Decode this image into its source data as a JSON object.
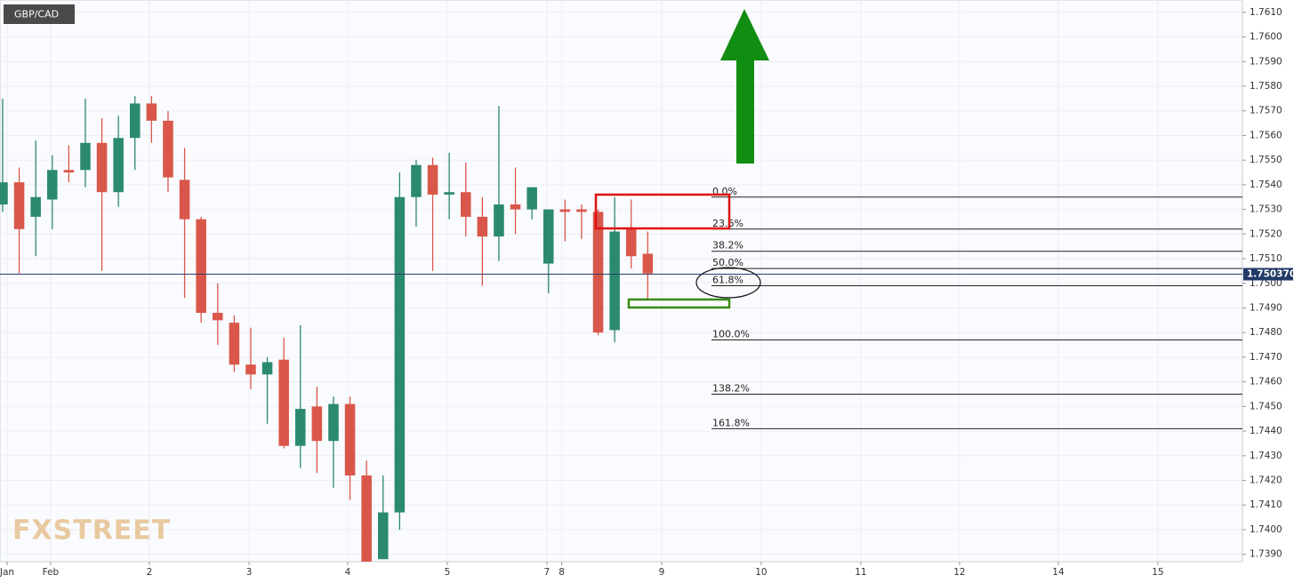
{
  "chart_data": {
    "type": "candlestick",
    "title": "GBP/CAD",
    "watermark": "FXSTREET",
    "up_color": "#2b8a6e",
    "down_color": "#d9574a",
    "grid": true,
    "x": [
      0,
      1,
      2,
      3,
      4,
      5,
      6,
      7,
      8,
      9,
      10,
      11,
      12,
      13,
      14,
      15,
      16,
      17,
      18,
      19,
      20,
      21,
      22,
      23,
      24,
      25,
      26,
      27,
      28,
      29,
      30,
      31,
      32,
      33,
      34,
      35,
      36,
      37,
      38,
      39
    ],
    "open": [
      1.7532,
      1.7541,
      1.7527,
      1.7534,
      1.7546,
      1.7546,
      1.7557,
      1.7537,
      1.7559,
      1.7573,
      1.7566,
      1.7542,
      1.7526,
      1.7488,
      1.7484,
      1.7467,
      1.7463,
      1.7469,
      1.7434,
      1.745,
      1.7436,
      1.7451,
      1.7422,
      1.7388,
      1.7407,
      1.7535,
      1.7548,
      1.7536,
      1.7537,
      1.7527,
      1.7519,
      1.7532,
      1.753,
      1.7508,
      1.753,
      1.753,
      1.7529,
      1.7481,
      1.7522,
      1.7512
    ],
    "high": [
      1.7575,
      1.7547,
      1.7558,
      1.7552,
      1.7556,
      1.7575,
      1.7567,
      1.7568,
      1.7576,
      1.7576,
      1.757,
      1.7555,
      1.7527,
      1.75,
      1.7487,
      1.7482,
      1.747,
      1.7478,
      1.7483,
      1.7458,
      1.7454,
      1.7454,
      1.7428,
      1.7422,
      1.7545,
      1.755,
      1.7551,
      1.7553,
      1.7549,
      1.7535,
      1.7572,
      1.7547,
      1.7539,
      1.753,
      1.7534,
      1.7532,
      1.753,
      1.7535,
      1.7534,
      1.7521
    ],
    "low": [
      1.7529,
      1.7504,
      1.7511,
      1.7522,
      1.7541,
      1.7539,
      1.7505,
      1.7531,
      1.7546,
      1.7557,
      1.7537,
      1.7494,
      1.7484,
      1.7475,
      1.7464,
      1.7457,
      1.7443,
      1.7433,
      1.7425,
      1.7423,
      1.7417,
      1.7412,
      1.7385,
      1.7388,
      1.74,
      1.7523,
      1.7505,
      1.7526,
      1.7519,
      1.7499,
      1.7509,
      1.752,
      1.7526,
      1.7496,
      1.7517,
      1.7518,
      1.7479,
      1.7476,
      1.7506,
      1.7493
    ],
    "close": [
      1.7541,
      1.7522,
      1.7535,
      1.7546,
      1.7545,
      1.7557,
      1.7537,
      1.7559,
      1.7573,
      1.7566,
      1.7543,
      1.7526,
      1.7488,
      1.7485,
      1.7467,
      1.7463,
      1.7468,
      1.7434,
      1.7449,
      1.7436,
      1.7451,
      1.7422,
      1.7385,
      1.7407,
      1.7535,
      1.7548,
      1.7536,
      1.7537,
      1.7527,
      1.7519,
      1.7532,
      1.753,
      1.7539,
      1.753,
      1.7529,
      1.7529,
      1.748,
      1.7521,
      1.7511,
      1.7504
    ],
    "xlim": [
      -0.16,
      74.95
    ],
    "xticks": [
      {
        "value": 0.27,
        "label": "Jan"
      },
      {
        "value": 2.9,
        "label": "Feb"
      },
      {
        "value": 8.87,
        "label": "2"
      },
      {
        "value": 14.9,
        "label": "3"
      },
      {
        "value": 20.86,
        "label": "4"
      },
      {
        "value": 26.88,
        "label": "5"
      },
      {
        "value": 32.9,
        "label": "7"
      },
      {
        "value": 33.8,
        "label": "8"
      },
      {
        "value": 39.84,
        "label": "9"
      },
      {
        "value": 45.86,
        "label": "10"
      },
      {
        "value": 51.88,
        "label": "11"
      },
      {
        "value": 57.85,
        "label": "12"
      },
      {
        "value": 63.82,
        "label": "14"
      },
      {
        "value": 69.84,
        "label": "15"
      }
    ],
    "ylim": [
      1.7387,
      1.7615
    ],
    "yticks": [
      {
        "value": 1.739,
        "label": "1.7390"
      },
      {
        "value": 1.74,
        "label": "1.7400"
      },
      {
        "value": 1.741,
        "label": "1.7410"
      },
      {
        "value": 1.742,
        "label": "1.7420"
      },
      {
        "value": 1.743,
        "label": "1.7430"
      },
      {
        "value": 1.744,
        "label": "1.7440"
      },
      {
        "value": 1.745,
        "label": "1.7450"
      },
      {
        "value": 1.746,
        "label": "1.7460"
      },
      {
        "value": 1.747,
        "label": "1.7470"
      },
      {
        "value": 1.748,
        "label": "1.7480"
      },
      {
        "value": 1.749,
        "label": "1.7490"
      },
      {
        "value": 1.75,
        "label": "1.7500"
      },
      {
        "value": 1.751,
        "label": "1.7510"
      },
      {
        "value": 1.752,
        "label": "1.7520"
      },
      {
        "value": 1.753,
        "label": "1.7530"
      },
      {
        "value": 1.754,
        "label": "1.7540"
      },
      {
        "value": 1.755,
        "label": "1.7550"
      },
      {
        "value": 1.756,
        "label": "1.7560"
      },
      {
        "value": 1.757,
        "label": "1.7570"
      },
      {
        "value": 1.758,
        "label": "1.7580"
      },
      {
        "value": 1.759,
        "label": "1.7590"
      },
      {
        "value": 1.76,
        "label": "1.7600"
      },
      {
        "value": 1.761,
        "label": "1.7610"
      }
    ],
    "last_price": {
      "value": 1.75037,
      "label": "1.750370"
    },
    "fib_levels": [
      {
        "label": "0.0%",
        "price": 1.7535
      },
      {
        "label": "23.6%",
        "price": 1.7522
      },
      {
        "label": "38.2%",
        "price": 1.7513
      },
      {
        "label": "50.0%",
        "price": 1.7506
      },
      {
        "label": "61.8%",
        "price": 1.7499
      },
      {
        "label": "100.0%",
        "price": 1.7477
      },
      {
        "label": "138.2%",
        "price": 1.7455
      },
      {
        "label": "161.8%",
        "price": 1.7441
      }
    ]
  }
}
